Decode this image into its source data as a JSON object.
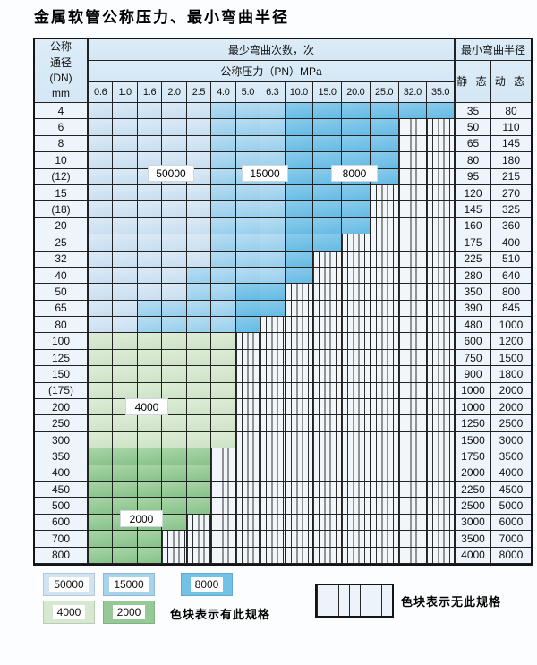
{
  "title": "金属软管公称压力、最小弯曲半径",
  "colors": {
    "L": "#cfe3f2",
    "M": "#a6d4ee",
    "D": "#72c1e7",
    "G": "#d6e8d0",
    "E": "#95c996",
    "stripe_bg": "#f1f6fa",
    "header_bg": "#d9e9f6",
    "row_label_bg": "#edf4fb"
  },
  "table": {
    "corner_lines": [
      "公称",
      "通径",
      "(DN)",
      "mm"
    ],
    "bend_header": "最少弯曲次数，次",
    "pressure_header": "公称压力（PN）MPa",
    "radius_header": "最小弯曲半径",
    "static_label": "静 态",
    "dynamic_label": "动 态",
    "pressure_cols": [
      "0.6",
      "1.0",
      "1.6",
      "2.0",
      "2.5",
      "4.0",
      "5.0",
      "6.3",
      "10.0",
      "15.0",
      "20.0",
      "25.0",
      "32.0",
      "35.0"
    ],
    "rows": [
      {
        "dn": "4",
        "zones": "LLLLLMMMDDDDDD",
        "static": "35",
        "dynamic": "80"
      },
      {
        "dn": "6",
        "zones": "LLLLLMMMDDDDNN",
        "static": "50",
        "dynamic": "110"
      },
      {
        "dn": "8",
        "zones": "LLLLLMMMDDDDNN",
        "static": "65",
        "dynamic": "145"
      },
      {
        "dn": "10",
        "zones": "LLLLLMMMDDDDNN",
        "static": "80",
        "dynamic": "180"
      },
      {
        "dn": "(12)",
        "zones": "LLLLLMMMDDDDNN",
        "static": "95",
        "dynamic": "215"
      },
      {
        "dn": "15",
        "zones": "LLLLLMMMDDDNNN",
        "static": "120",
        "dynamic": "270"
      },
      {
        "dn": "(18)",
        "zones": "LLLLLMMMDDDNNN",
        "static": "145",
        "dynamic": "325"
      },
      {
        "dn": "20",
        "zones": "LLLLLMMMDDDNNN",
        "static": "160",
        "dynamic": "360"
      },
      {
        "dn": "25",
        "zones": "LLLLLMMMDDNNNN",
        "static": "175",
        "dynamic": "400"
      },
      {
        "dn": "32",
        "zones": "LLLLLMMMDNNNNN",
        "static": "225",
        "dynamic": "510"
      },
      {
        "dn": "40",
        "zones": "LLLLMMMMDNNNNN",
        "static": "280",
        "dynamic": "640"
      },
      {
        "dn": "50",
        "zones": "LLLLMMDDNNNNNN",
        "static": "350",
        "dynamic": "800"
      },
      {
        "dn": "65",
        "zones": "LLMMMMDDNNNNNN",
        "static": "390",
        "dynamic": "845"
      },
      {
        "dn": "80",
        "zones": "LLMMMMDNNNNNNN",
        "static": "480",
        "dynamic": "1000"
      },
      {
        "dn": "100",
        "zones": "GGGGGGNNNNNNNN",
        "static": "600",
        "dynamic": "1200"
      },
      {
        "dn": "125",
        "zones": "GGGGGGNNNNNNNN",
        "static": "750",
        "dynamic": "1500"
      },
      {
        "dn": "150",
        "zones": "GGGGGGNNNNNNNN",
        "static": "900",
        "dynamic": "1800"
      },
      {
        "dn": "(175)",
        "zones": "GGGGGGNNNNNNNN",
        "static": "1000",
        "dynamic": "2000"
      },
      {
        "dn": "200",
        "zones": "GGGGGGNNNNNNNN",
        "static": "1000",
        "dynamic": "2000"
      },
      {
        "dn": "250",
        "zones": "GGGGGGNNNNNNNN",
        "static": "1250",
        "dynamic": "2500"
      },
      {
        "dn": "300",
        "zones": "GGGGGGNNNNNNNN",
        "static": "1500",
        "dynamic": "3000"
      },
      {
        "dn": "350",
        "zones": "EEEEENNNNNNNNN",
        "static": "1750",
        "dynamic": "3500"
      },
      {
        "dn": "400",
        "zones": "EEEEENNNNNNNNN",
        "static": "2000",
        "dynamic": "4000"
      },
      {
        "dn": "450",
        "zones": "EEEEENNNNNNNNN",
        "static": "2250",
        "dynamic": "4500"
      },
      {
        "dn": "500",
        "zones": "EEEEENNNNNNNNN",
        "static": "2500",
        "dynamic": "5000"
      },
      {
        "dn": "600",
        "zones": "EEEENNNNNNNNNN",
        "static": "3000",
        "dynamic": "6000"
      },
      {
        "dn": "700",
        "zones": "EEENNNNNNNNNNN",
        "static": "3500",
        "dynamic": "7000"
      },
      {
        "dn": "800",
        "zones": "EEENNNNNNNNNNN",
        "static": "4000",
        "dynamic": "8000"
      }
    ]
  },
  "overlays": [
    {
      "text": "50000"
    },
    {
      "text": "15000"
    },
    {
      "text": "8000"
    },
    {
      "text": "4000"
    },
    {
      "text": "2000"
    }
  ],
  "legend": {
    "items": [
      {
        "label": "50000",
        "zone": "L"
      },
      {
        "label": "15000",
        "zone": "M"
      },
      {
        "label": "8000",
        "zone": "D"
      },
      {
        "label": "4000",
        "zone": "G"
      },
      {
        "label": "2000",
        "zone": "E"
      }
    ],
    "has_spec_note": "色块表示有此规格",
    "no_spec_note": "色块表示无此规格"
  }
}
